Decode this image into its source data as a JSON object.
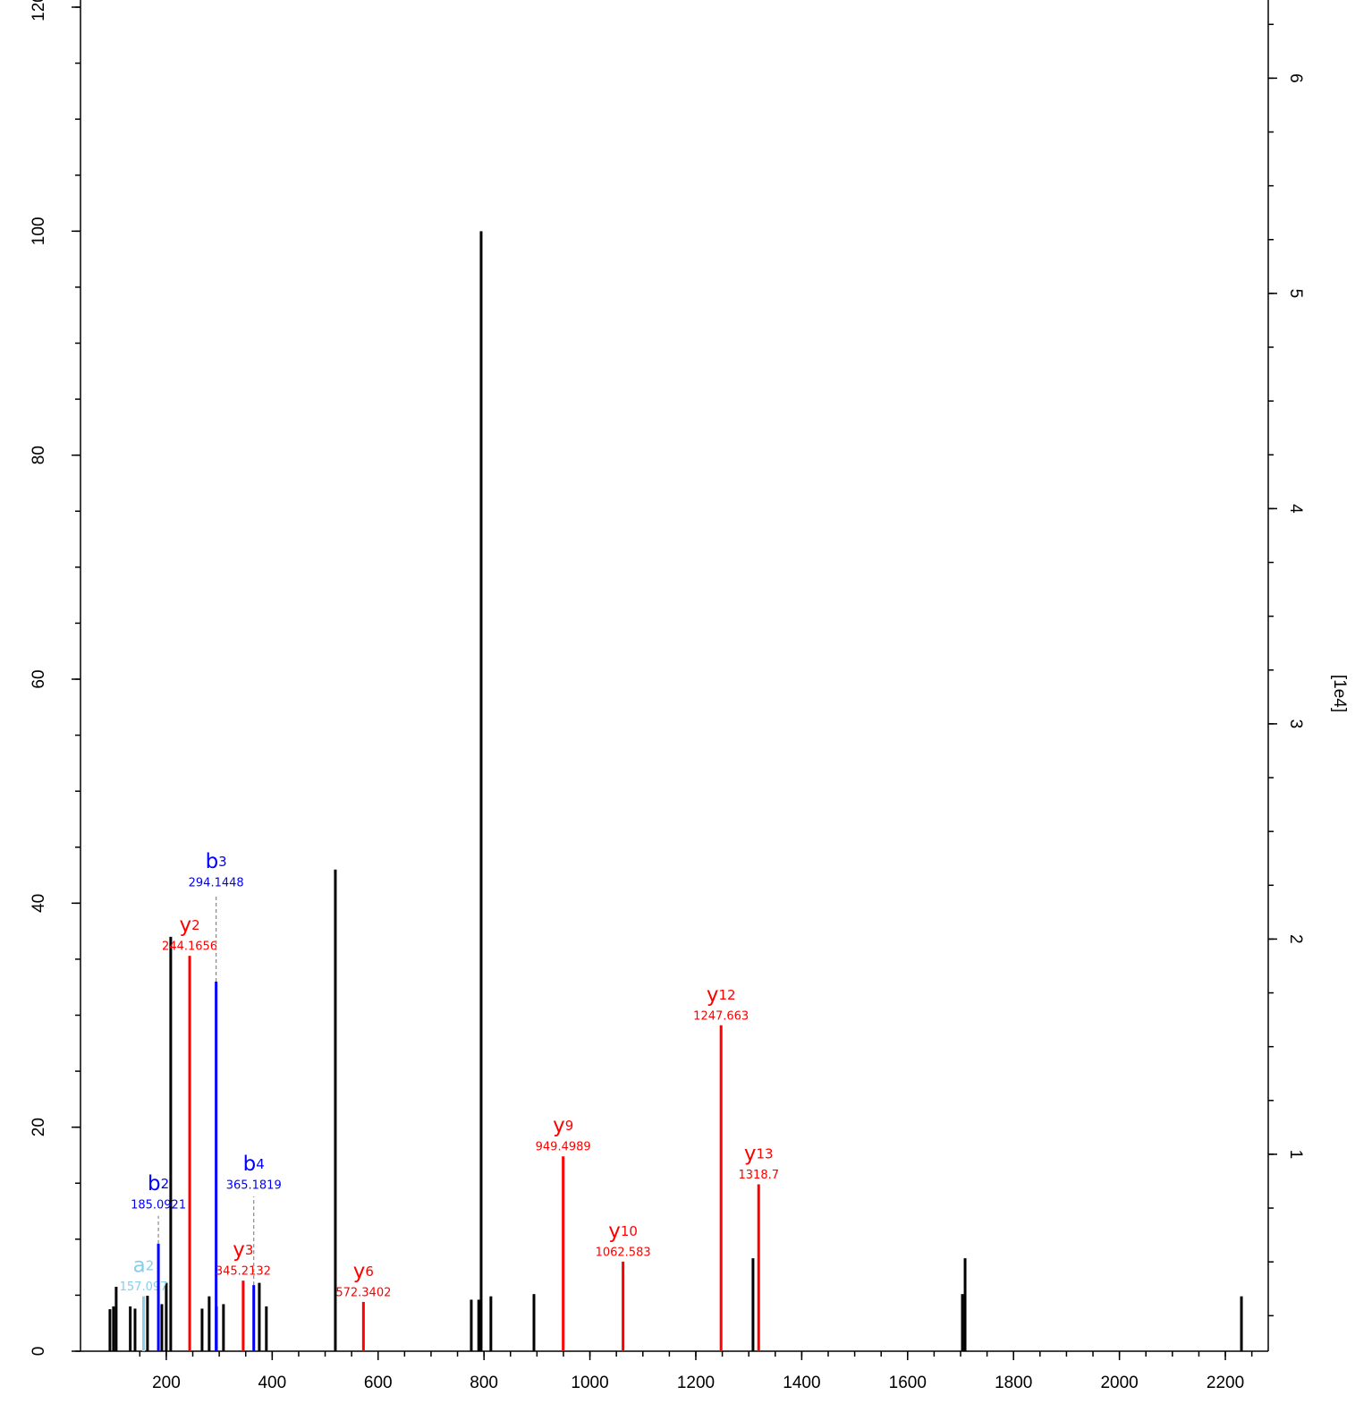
{
  "chart_data": {
    "type": "stem",
    "xlim": [
      38,
      2281
    ],
    "xticks": [
      200,
      400,
      600,
      800,
      1000,
      1200,
      1400,
      1600,
      1800,
      2000,
      2200
    ],
    "ylim": [
      0,
      120
    ],
    "yticks": [
      0,
      20,
      40,
      60,
      80,
      100,
      120
    ],
    "y2lim": [
      0.085,
      6.33
    ],
    "y2ticks": [
      1,
      2,
      3,
      4,
      5,
      6
    ],
    "y2label": "[1e4]",
    "series": [
      {
        "color": "#000000",
        "x": [
          93.6,
          100.3,
          105.4,
          132,
          141,
          164.5,
          191.6,
          200,
          208.4,
          267.6,
          281,
          294.6,
          308,
          375.7,
          389,
          519.3,
          776,
          790,
          794.6,
          813,
          894.3,
          1308,
          1703.4,
          1708.5,
          2230.4
        ],
        "values": [
          3.75,
          4.0,
          5.75,
          4.0,
          3.8,
          4.95,
          4.2,
          6.1,
          37,
          3.8,
          4.9,
          4.0,
          4.2,
          6.1,
          4.0,
          43.0,
          4.6,
          4.6,
          100,
          4.9,
          5.1,
          8.3,
          5.1,
          8.3,
          4.9
        ]
      }
    ],
    "annotated_peaks": [
      {
        "ion": "a",
        "index": 2,
        "x": 157.097,
        "value": 4.9,
        "color": "#87ceeb"
      },
      {
        "ion": "b",
        "index": 2,
        "x": 185.0921,
        "value": 9.6,
        "color": "#0000ff"
      },
      {
        "ion": "y",
        "index": 2,
        "x": 244.1656,
        "value": 35.3,
        "color": "#ff0000"
      },
      {
        "ion": "b",
        "index": 3,
        "x": 294.1448,
        "value": 33,
        "color": "#0000ff"
      },
      {
        "ion": "y",
        "index": 3,
        "x": 345.2132,
        "value": 6.3,
        "color": "#ff0000"
      },
      {
        "ion": "b",
        "index": 4,
        "x": 365.1819,
        "value": 5.9,
        "color": "#0000ff"
      },
      {
        "ion": "y",
        "index": 6,
        "x": 572.3402,
        "value": 4.4,
        "color": "#ff0000"
      },
      {
        "ion": "y",
        "index": 9,
        "x": 949.4989,
        "value": 17.4,
        "color": "#ff0000"
      },
      {
        "ion": "y",
        "index": 10,
        "x": 1062.583,
        "value": 8.0,
        "color": "#ff0000"
      },
      {
        "ion": "y",
        "index": 12,
        "x": 1247.663,
        "value": 29.1,
        "color": "#ff0000"
      },
      {
        "ion": "y",
        "index": 13,
        "x": 1318.7,
        "value": 14.9,
        "color": "#ff0000"
      }
    ]
  }
}
